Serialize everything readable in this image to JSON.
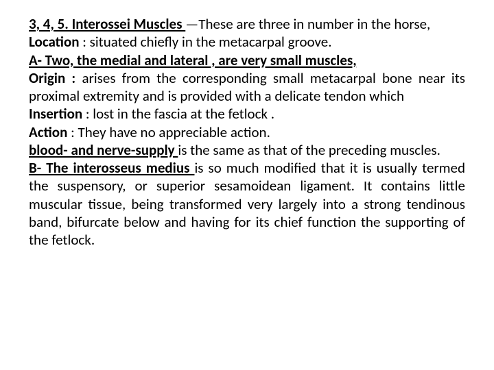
{
  "doc": {
    "title_bold_underline": "3, 4, 5. Interossei  Muscles ",
    "title_rest": "—These are three in number in the horse,",
    "location_label": "Location",
    "location_text": " : situated chiefly in the metacarpal groove.",
    "a_line": "A- Two, the medial  and lateral , are very small muscles,",
    "origin_label": "Origin : ",
    "origin_text": "arises from the corresponding small metacarpal bone near its proximal extremity and is provided with a delicate tendon which",
    "insertion_label": "Insertion",
    "insertion_text": " : lost in the fascia at the fetlock .",
    "action_label": "Action",
    "action_text": " : They have no appreciable action.",
    "blood_label": " blood- and nerve-supply ",
    "blood_text": "is the same as that of the preceding muscles.",
    "b_label": "B- The interosseus medius ",
    "b_text": "is so much modified that it is usually termed the suspensory, or superior sesamoidean ligament. It contains little muscular tissue, being transformed very largely into a strong tendinous band, bifurcate below  and having for its chief function the supporting of the fetlock."
  }
}
